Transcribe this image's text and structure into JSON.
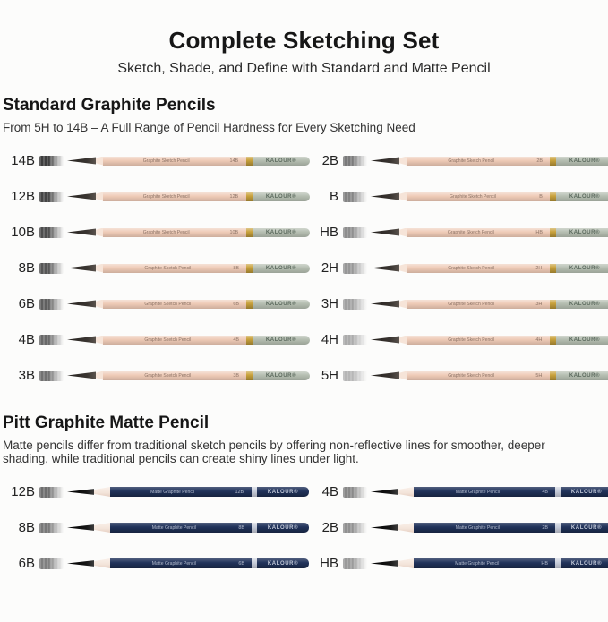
{
  "header": {
    "title": "Complete Sketching Set",
    "subtitle": "Sketch, Shade, and Define with Standard and Matte Pencil"
  },
  "brand_print": "KALOUR®",
  "standard_section": {
    "heading": "Standard Graphite Pencils",
    "description": "From 5H to 14B – A Full Range of Pencil Hardness for Every Sketching Need",
    "pencil_print_label": "Graphite Sketch Pencil",
    "pencil_colors": {
      "body": "#eecab6",
      "band": "#c9a23c",
      "cap": "#b4bdb0",
      "cap_text": "#5c6a5e",
      "tip": "#3a3531",
      "print_text": "#8a7164"
    },
    "rows_left": [
      {
        "grade": "14B",
        "swatch_color": "#3d3d3d"
      },
      {
        "grade": "12B",
        "swatch_color": "#454545"
      },
      {
        "grade": "10B",
        "swatch_color": "#4d4d4d"
      },
      {
        "grade": "8B",
        "swatch_color": "#565656"
      },
      {
        "grade": "6B",
        "swatch_color": "#5f5f5f"
      },
      {
        "grade": "4B",
        "swatch_color": "#696969"
      },
      {
        "grade": "3B",
        "swatch_color": "#717171"
      }
    ],
    "rows_right": [
      {
        "grade": "2B",
        "swatch_color": "#7a7a7a"
      },
      {
        "grade": "B",
        "swatch_color": "#848484"
      },
      {
        "grade": "HB",
        "swatch_color": "#8e8e8e"
      },
      {
        "grade": "2H",
        "swatch_color": "#979797"
      },
      {
        "grade": "3H",
        "swatch_color": "#a1a1a1"
      },
      {
        "grade": "4H",
        "swatch_color": "#ababab"
      },
      {
        "grade": "5H",
        "swatch_color": "#b6b6b6"
      }
    ]
  },
  "matte_section": {
    "heading": "Pitt Graphite Matte Pencil",
    "description": "Matte pencils differ from traditional sketch pencils by offering non-reflective lines for smoother, deeper shading, while traditional pencils can create shiny lines under light.",
    "pencil_print_label": "Matte Graphite Pencil",
    "pencil_colors": {
      "body": "#20325a",
      "band": "#c6ccd9",
      "cap_text": "#c2c9d8",
      "tip": "#151515",
      "wood": "#f3e4da",
      "print_text": "#b7bfd0"
    },
    "rows_left": [
      {
        "grade": "12B",
        "swatch_color": "#6e6e6e"
      },
      {
        "grade": "8B",
        "swatch_color": "#787878"
      },
      {
        "grade": "6B",
        "swatch_color": "#7f7f7f"
      }
    ],
    "rows_right": [
      {
        "grade": "4B",
        "swatch_color": "#888888"
      },
      {
        "grade": "2B",
        "swatch_color": "#919191"
      },
      {
        "grade": "HB",
        "swatch_color": "#9a9a9a"
      }
    ]
  },
  "colors": {
    "page_bg": "#fcfcfb",
    "heading_text": "#161616",
    "body_text": "#333333"
  }
}
